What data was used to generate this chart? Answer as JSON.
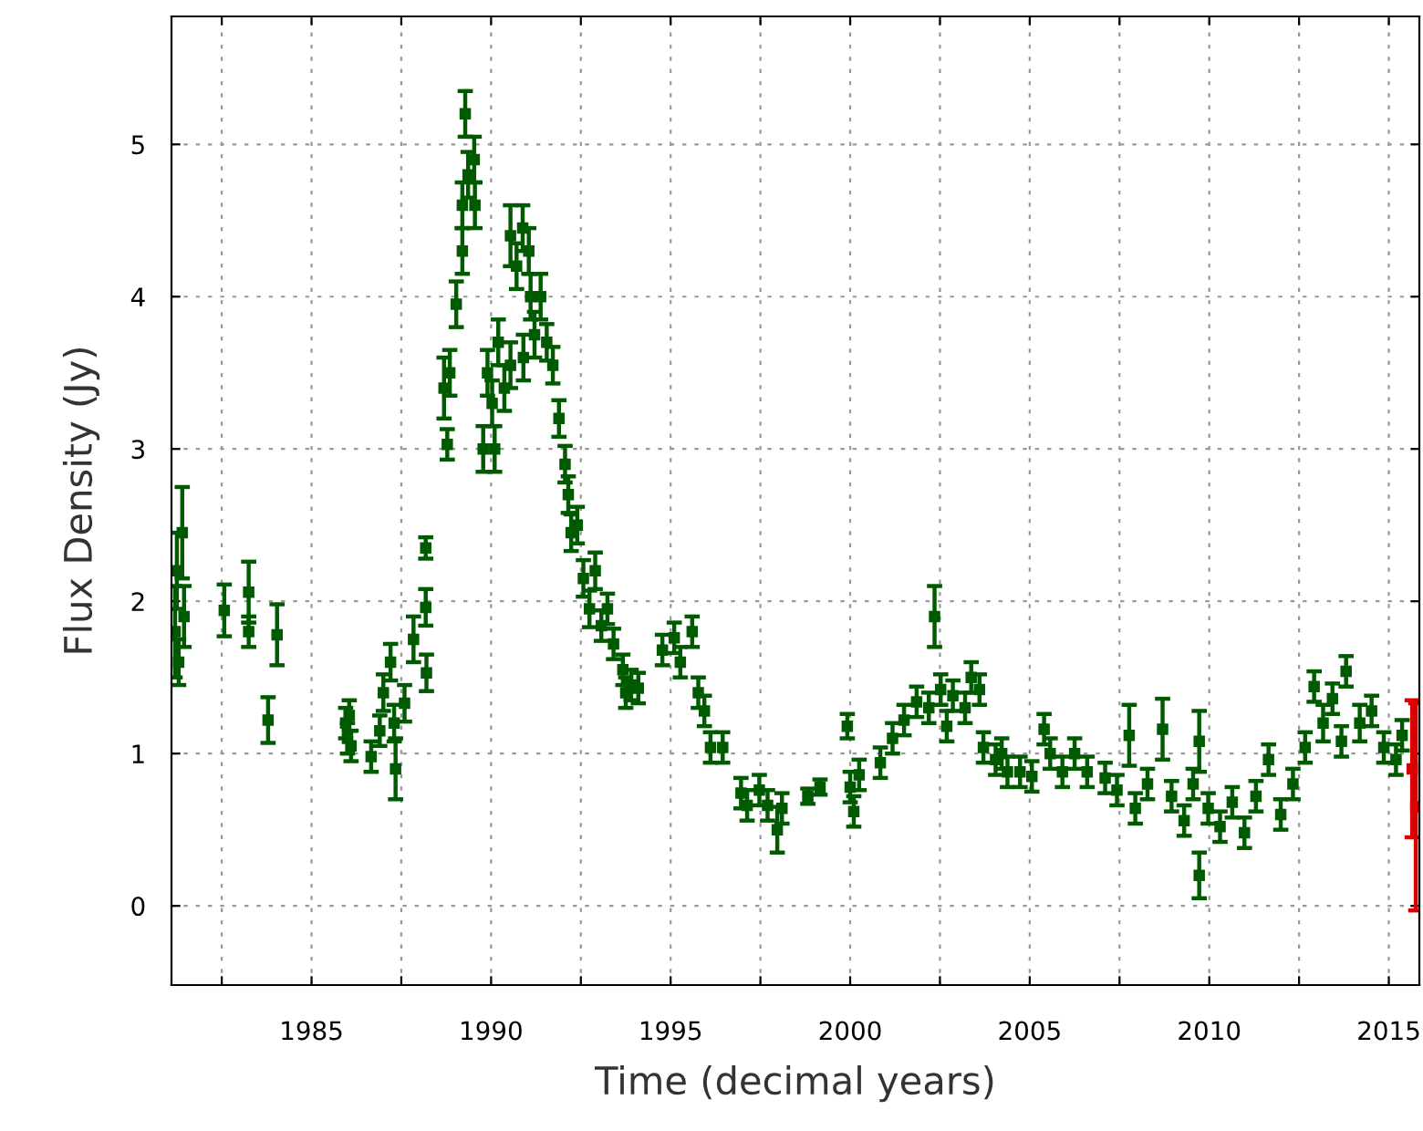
{
  "chart_data": {
    "type": "scatter",
    "xlabel": "Time (decimal years)",
    "ylabel": "Flux Density (Jy)",
    "xlim": [
      1981.1,
      2015.85
    ],
    "ylim": [
      -0.52,
      5.84
    ],
    "xticks": [
      {
        "value": 1982.5,
        "label": null
      },
      1985,
      {
        "value": 1987.5,
        "label": null
      },
      1990,
      {
        "value": 1992.5,
        "label": null
      },
      1995,
      {
        "value": 1997.5,
        "label": null
      },
      2000,
      {
        "value": 2002.5,
        "label": null
      },
      2005,
      {
        "value": 2007.5,
        "label": null
      },
      2010,
      {
        "value": 2012.5,
        "label": null
      },
      2015
    ],
    "yticks": [
      0,
      1,
      2,
      3,
      4,
      5
    ],
    "grid": true,
    "marker": "square",
    "series": [
      {
        "color": "#005a00",
        "x": [
          1981.2,
          1981.25,
          1981.3,
          1981.4,
          1981.45,
          1982.57,
          1983.25,
          1983.25,
          1983.79,
          1984.04,
          1985.95,
          1986.0,
          1986.05,
          1986.1,
          1986.66,
          1986.9,
          1987.0,
          1987.2,
          1987.3,
          1987.34,
          1987.59,
          1987.84,
          1988.18,
          1988.18,
          1988.2,
          1988.69,
          1988.78,
          1988.85,
          1989.03,
          1989.2,
          1989.2,
          1989.28,
          1989.36,
          1989.53,
          1989.55,
          1989.78,
          1989.9,
          1990.03,
          1990.1,
          1990.2,
          1990.37,
          1990.54,
          1990.54,
          1990.71,
          1990.88,
          1990.9,
          1991.05,
          1991.1,
          1991.21,
          1991.38,
          1991.55,
          1991.72,
          1991.89,
          1992.06,
          1992.15,
          1992.23,
          1992.4,
          1992.57,
          1992.74,
          1992.9,
          1993.07,
          1993.24,
          1993.41,
          1993.67,
          1993.75,
          1993.9,
          1994.1,
          1994.77,
          1995.1,
          1995.27,
          1995.6,
          1995.77,
          1995.94,
          1996.11,
          1996.45,
          1996.96,
          1997.13,
          1997.47,
          1997.7,
          1997.97,
          1998.1,
          1998.82,
          1999.16,
          1999.92,
          2000.0,
          2000.1,
          2000.25,
          2000.84,
          2001.18,
          2001.5,
          2001.85,
          2002.19,
          2002.35,
          2002.52,
          2002.69,
          2002.86,
          2003.2,
          2003.37,
          2003.6,
          2003.71,
          2004.05,
          2004.22,
          2004.38,
          2004.73,
          2005.06,
          2005.4,
          2005.57,
          2005.91,
          2006.25,
          2006.6,
          2007.1,
          2007.43,
          2007.77,
          2007.94,
          2008.28,
          2008.7,
          2008.95,
          2009.3,
          2009.55,
          2009.72,
          2009.72,
          2009.97,
          2010.3,
          2010.64,
          2010.98,
          2011.3,
          2011.65,
          2011.99,
          2012.33,
          2012.67,
          2012.92,
          2013.17,
          2013.43,
          2013.68,
          2013.81,
          2014.19,
          2014.52,
          2014.86,
          2015.2,
          2015.37
        ],
        "values": [
          1.8,
          2.2,
          1.6,
          2.45,
          1.9,
          1.94,
          2.06,
          1.8,
          1.22,
          1.78,
          1.2,
          1.1,
          1.25,
          1.05,
          0.98,
          1.15,
          1.4,
          1.6,
          1.2,
          0.9,
          1.33,
          1.75,
          1.96,
          2.35,
          1.53,
          3.4,
          3.03,
          3.5,
          3.95,
          4.3,
          4.6,
          5.2,
          4.8,
          4.9,
          4.6,
          3.0,
          3.5,
          3.3,
          3.0,
          3.7,
          3.4,
          3.55,
          4.4,
          4.2,
          4.45,
          3.6,
          4.3,
          4.0,
          3.75,
          4.0,
          3.7,
          3.55,
          3.2,
          2.9,
          2.7,
          2.45,
          2.5,
          2.15,
          1.95,
          2.2,
          1.84,
          1.95,
          1.72,
          1.55,
          1.4,
          1.45,
          1.43,
          1.68,
          1.76,
          1.6,
          1.8,
          1.4,
          1.28,
          1.04,
          1.04,
          0.74,
          0.66,
          0.76,
          0.66,
          0.5,
          0.64,
          0.72,
          0.78,
          1.18,
          0.78,
          0.62,
          0.86,
          0.94,
          1.1,
          1.22,
          1.34,
          1.3,
          1.9,
          1.42,
          1.18,
          1.38,
          1.3,
          1.5,
          1.42,
          1.04,
          0.96,
          1.0,
          0.88,
          0.88,
          0.85,
          1.16,
          1.0,
          0.88,
          1.0,
          0.88,
          0.84,
          0.76,
          1.12,
          0.64,
          0.8,
          1.16,
          0.72,
          0.56,
          0.8,
          1.08,
          0.2,
          0.64,
          0.52,
          0.68,
          0.48,
          0.72,
          0.96,
          0.6,
          0.8,
          1.04,
          1.44,
          1.2,
          1.36,
          1.08,
          1.54,
          1.2,
          1.28,
          1.04,
          0.96,
          1.12
        ],
        "errors": [
          0.3,
          0.25,
          0.15,
          0.3,
          0.2,
          0.17,
          0.2,
          0.1,
          0.15,
          0.2,
          0.1,
          0.1,
          0.1,
          0.1,
          0.1,
          0.1,
          0.12,
          0.12,
          0.12,
          0.2,
          0.12,
          0.15,
          0.12,
          0.07,
          0.12,
          0.2,
          0.1,
          0.15,
          0.15,
          0.15,
          0.15,
          0.15,
          0.15,
          0.15,
          0.15,
          0.15,
          0.15,
          0.15,
          0.15,
          0.15,
          0.15,
          0.15,
          0.2,
          0.15,
          0.15,
          0.15,
          0.15,
          0.15,
          0.15,
          0.15,
          0.12,
          0.12,
          0.12,
          0.12,
          0.12,
          0.12,
          0.12,
          0.12,
          0.12,
          0.12,
          0.1,
          0.1,
          0.1,
          0.1,
          0.1,
          0.1,
          0.1,
          0.1,
          0.1,
          0.1,
          0.1,
          0.1,
          0.1,
          0.1,
          0.1,
          0.1,
          0.1,
          0.1,
          0.1,
          0.15,
          0.1,
          0.05,
          0.05,
          0.08,
          0.1,
          0.1,
          0.1,
          0.1,
          0.1,
          0.1,
          0.1,
          0.1,
          0.2,
          0.1,
          0.1,
          0.1,
          0.1,
          0.1,
          0.1,
          0.1,
          0.1,
          0.1,
          0.1,
          0.1,
          0.1,
          0.1,
          0.1,
          0.1,
          0.1,
          0.1,
          0.1,
          0.1,
          0.2,
          0.1,
          0.1,
          0.2,
          0.1,
          0.1,
          0.1,
          0.2,
          0.15,
          0.1,
          0.1,
          0.1,
          0.1,
          0.1,
          0.1,
          0.1,
          0.1,
          0.1,
          0.1,
          0.12,
          0.1,
          0.1,
          0.1,
          0.12,
          0.1,
          0.1,
          0.1,
          0.1
        ]
      },
      {
        "color": "#dd0000",
        "x": [
          2015.65,
          2015.75
        ],
        "values": [
          0.9,
          0.65
        ],
        "errors": [
          0.45,
          0.68
        ]
      }
    ]
  }
}
